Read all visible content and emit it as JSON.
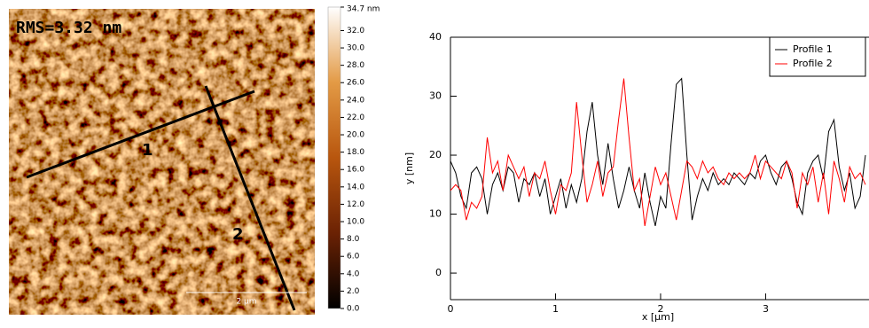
{
  "chart_data": [
    {
      "type": "image",
      "annotation": "RMS=3.32 nm",
      "line_labels": [
        "1",
        "2"
      ],
      "scale_bar": "2 µm",
      "colormap": [
        "#000000",
        "#6b2204",
        "#b8560e",
        "#e39a45",
        "#ffffff"
      ],
      "clim": [
        0,
        34.7
      ],
      "cticks": [
        {
          "value": 34.7,
          "label": "34.7 nm"
        },
        {
          "value": 32,
          "label": "32.0"
        },
        {
          "value": 30,
          "label": "30.0"
        },
        {
          "value": 28,
          "label": "28.0"
        },
        {
          "value": 26,
          "label": "26.0"
        },
        {
          "value": 24,
          "label": "24.0"
        },
        {
          "value": 22,
          "label": "22.0"
        },
        {
          "value": 20,
          "label": "20.0"
        },
        {
          "value": 18,
          "label": "18.0"
        },
        {
          "value": 16,
          "label": "16.0"
        },
        {
          "value": 14,
          "label": "14.0"
        },
        {
          "value": 12,
          "label": "12.0"
        },
        {
          "value": 10,
          "label": "10.0"
        },
        {
          "value": 8,
          "label": "8.0"
        },
        {
          "value": 6,
          "label": "6.0"
        },
        {
          "value": 4,
          "label": "4.0"
        },
        {
          "value": 2,
          "label": "2.0"
        },
        {
          "value": 0,
          "label": "0.0"
        }
      ]
    },
    {
      "type": "line",
      "xlabel": "x [µm]",
      "ylabel": "y [nm]",
      "xlim": [
        0,
        3.95
      ],
      "ylim": [
        -4.5,
        40
      ],
      "xticks": [
        0,
        1,
        2,
        3
      ],
      "yticks": [
        0,
        10,
        20,
        30,
        40
      ],
      "legend": "upper right",
      "x": [
        0,
        0.05,
        0.1,
        0.15,
        0.2,
        0.25,
        0.3,
        0.35,
        0.4,
        0.45,
        0.5,
        0.55,
        0.6,
        0.65,
        0.7,
        0.75,
        0.8,
        0.85,
        0.9,
        0.95,
        1,
        1.05,
        1.1,
        1.15,
        1.2,
        1.25,
        1.3,
        1.35,
        1.4,
        1.45,
        1.5,
        1.55,
        1.6,
        1.65,
        1.7,
        1.75,
        1.8,
        1.85,
        1.9,
        1.95,
        2,
        2.05,
        2.1,
        2.15,
        2.2,
        2.25,
        2.3,
        2.35,
        2.4,
        2.45,
        2.5,
        2.55,
        2.6,
        2.65,
        2.7,
        2.75,
        2.8,
        2.85,
        2.9,
        2.95,
        3,
        3.05,
        3.1,
        3.15,
        3.2,
        3.25,
        3.3,
        3.35,
        3.4,
        3.45,
        3.5,
        3.55,
        3.6,
        3.65,
        3.7,
        3.75,
        3.8,
        3.85,
        3.9,
        3.95
      ],
      "series": [
        {
          "name": "Profile 1",
          "color": "#000000",
          "values": [
            19,
            17,
            13,
            11,
            17,
            18,
            16,
            10,
            15,
            17,
            14,
            18,
            17,
            12,
            16,
            15,
            17,
            13,
            16,
            10,
            13,
            16,
            11,
            15,
            12,
            16,
            24,
            29,
            20,
            15,
            22,
            16,
            11,
            14,
            18,
            14,
            11,
            17,
            12,
            8,
            13,
            11,
            22,
            32,
            33,
            20,
            9,
            13,
            16,
            14,
            17,
            15,
            16,
            15,
            17,
            16,
            15,
            17,
            16,
            19,
            20,
            17,
            15,
            18,
            19,
            16,
            12,
            10,
            17,
            19,
            20,
            16,
            24,
            26,
            18,
            14,
            17,
            11,
            13,
            20
          ]
        },
        {
          "name": "Profile 2",
          "color": "#ff0000",
          "values": [
            14,
            15,
            14,
            9,
            12,
            11,
            13,
            23,
            17,
            19,
            14,
            20,
            18,
            16,
            18,
            13,
            17,
            16,
            19,
            14,
            10,
            15,
            14,
            17,
            29,
            20,
            12,
            15,
            19,
            13,
            17,
            18,
            26,
            33,
            23,
            14,
            16,
            8,
            13,
            18,
            15,
            17,
            13,
            9,
            14,
            19,
            18,
            16,
            19,
            17,
            18,
            16,
            15,
            17,
            16,
            17,
            16,
            17,
            20,
            16,
            19,
            18,
            17,
            16,
            19,
            17,
            11,
            17,
            15,
            18,
            12,
            17,
            10,
            19,
            16,
            12,
            18,
            16,
            17,
            15
          ]
        }
      ]
    }
  ]
}
